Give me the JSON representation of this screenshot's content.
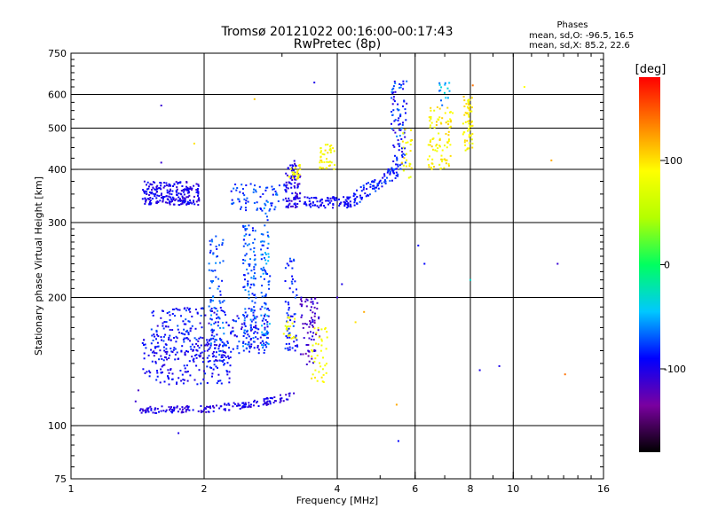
{
  "chart_data": {
    "type": "scatter",
    "title": "Tromsø 20121022 00:16:00-00:17:43",
    "subtitle": "RwPretec (8p)",
    "xlabel": "Frequency [MHz]",
    "ylabel": "Stationary phase Virtual Height [km]",
    "x_scale": "log",
    "y_scale": "log",
    "xlim": [
      1,
      16
    ],
    "ylim": [
      75,
      750
    ],
    "x_ticks": [
      {
        "value": 1,
        "label": "1"
      },
      {
        "value": 2,
        "label": "2"
      },
      {
        "value": 4,
        "label": "4"
      },
      {
        "value": 6,
        "label": "6"
      },
      {
        "value": 8,
        "label": "8"
      },
      {
        "value": 10,
        "label": "10"
      },
      {
        "value": 16,
        "label": "16"
      }
    ],
    "x_gridlines": [
      2,
      4,
      6,
      8,
      10
    ],
    "y_ticks": [
      {
        "value": 75,
        "label": "75"
      },
      {
        "value": 100,
        "label": "100"
      },
      {
        "value": 200,
        "label": "200"
      },
      {
        "value": 300,
        "label": "300"
      },
      {
        "value": 400,
        "label": "400"
      },
      {
        "value": 500,
        "label": "500"
      },
      {
        "value": 600,
        "label": "600"
      },
      {
        "value": 750,
        "label": "750"
      }
    ],
    "y_gridlines": [
      100,
      200,
      300,
      400,
      500,
      600
    ],
    "grid": true,
    "colorbar": {
      "label": "[deg]",
      "range": [
        -180,
        180
      ],
      "ticks": [
        {
          "value": 100,
          "label": "100"
        },
        {
          "value": 0,
          "label": "0"
        },
        {
          "value": -100,
          "label": "-100"
        }
      ],
      "colormap": [
        "#000000",
        "#7a00a0",
        "#0000ff",
        "#00c8ff",
        "#00ff60",
        "#b4ff00",
        "#ffff00",
        "#ff8000",
        "#ff0000"
      ]
    },
    "stats": {
      "title": "Phases",
      "line1": "mean, sd,O: -96.5, 16.5",
      "line2": "mean, sd,X:  85.2, 22.6"
    },
    "clusters": [
      {
        "f": [
          1.45,
          1.95
        ],
        "h": [
          330,
          375
        ],
        "phase": [
          -115,
          -85
        ],
        "n": 230,
        "shape": "box"
      },
      {
        "f": [
          1.52,
          2.8
        ],
        "h": [
          148,
          190
        ],
        "phase": [
          -110,
          -70
        ],
        "n": 260,
        "shape": "box"
      },
      {
        "f": [
          1.45,
          2.3
        ],
        "h": [
          125,
          160
        ],
        "phase": [
          -110,
          -80
        ],
        "n": 200,
        "shape": "box"
      },
      {
        "f": [
          1.42,
          3.2
        ],
        "h": [
          109,
          118
        ],
        "phase": [
          -115,
          -90
        ],
        "n": 170,
        "shape": "ramp"
      },
      {
        "f": [
          2.05,
          2.22
        ],
        "h": [
          140,
          280
        ],
        "phase": [
          -90,
          -55
        ],
        "n": 80,
        "shape": "box"
      },
      {
        "f": [
          2.45,
          2.62
        ],
        "h": [
          150,
          300
        ],
        "phase": [
          -90,
          -55
        ],
        "n": 110,
        "shape": "box"
      },
      {
        "f": [
          2.68,
          2.82
        ],
        "h": [
          150,
          340
        ],
        "phase": [
          -85,
          -45
        ],
        "n": 90,
        "shape": "box"
      },
      {
        "f": [
          2.3,
          3.1
        ],
        "h": [
          320,
          370
        ],
        "phase": [
          -95,
          -60
        ],
        "n": 70,
        "shape": "box"
      },
      {
        "f": [
          3.05,
          3.25
        ],
        "h": [
          150,
          250
        ],
        "phase": [
          -100,
          -70
        ],
        "n": 60,
        "shape": "box"
      },
      {
        "f": [
          3.05,
          3.3
        ],
        "h": [
          325,
          420
        ],
        "phase": [
          -120,
          -85
        ],
        "n": 90,
        "shape": "box"
      },
      {
        "f": [
          3.1,
          3.3
        ],
        "h": [
          380,
          410
        ],
        "phase": [
          70,
          105
        ],
        "n": 25,
        "shape": "box"
      },
      {
        "f": [
          3.3,
          3.65
        ],
        "h": [
          135,
          200
        ],
        "phase": [
          -130,
          -100
        ],
        "n": 70,
        "shape": "box"
      },
      {
        "f": [
          3.35,
          4.3
        ],
        "h": [
          325,
          345
        ],
        "phase": [
          -105,
          -85
        ],
        "n": 90,
        "shape": "box"
      },
      {
        "f": [
          3.5,
          3.8
        ],
        "h": [
          125,
          170
        ],
        "phase": [
          75,
          100
        ],
        "n": 40,
        "shape": "box"
      },
      {
        "f": [
          3.65,
          3.95
        ],
        "h": [
          400,
          460
        ],
        "phase": [
          75,
          105
        ],
        "n": 40,
        "shape": "box"
      },
      {
        "f": [
          3.0,
          3.25
        ],
        "h": [
          160,
          180
        ],
        "phase": [
          70,
          100
        ],
        "n": 20,
        "shape": "box"
      },
      {
        "f": [
          4.35,
          5.5
        ],
        "h": [
          340,
          400
        ],
        "phase": [
          -100,
          -70
        ],
        "n": 90,
        "shape": "ramp2"
      },
      {
        "f": [
          5.3,
          5.75
        ],
        "h": [
          400,
          650
        ],
        "phase": [
          -110,
          -60
        ],
        "n": 90,
        "shape": "box"
      },
      {
        "f": [
          5.6,
          5.9
        ],
        "h": [
          380,
          500
        ],
        "phase": [
          70,
          110
        ],
        "n": 25,
        "shape": "box"
      },
      {
        "f": [
          6.4,
          7.3
        ],
        "h": [
          400,
          560
        ],
        "phase": [
          75,
          110
        ],
        "n": 90,
        "shape": "box"
      },
      {
        "f": [
          7.7,
          8.1
        ],
        "h": [
          440,
          600
        ],
        "phase": [
          75,
          110
        ],
        "n": 60,
        "shape": "box"
      },
      {
        "f": [
          6.8,
          7.2
        ],
        "h": [
          560,
          640
        ],
        "phase": [
          -70,
          -30
        ],
        "n": 15,
        "shape": "box"
      }
    ],
    "points": [
      {
        "f": 1.4,
        "h": 114,
        "phase": -110
      },
      {
        "f": 1.42,
        "h": 121,
        "phase": -115
      },
      {
        "f": 1.6,
        "h": 565,
        "phase": -110
      },
      {
        "f": 1.6,
        "h": 415,
        "phase": -110
      },
      {
        "f": 1.75,
        "h": 96,
        "phase": -100
      },
      {
        "f": 2.6,
        "h": 585,
        "phase": 110
      },
      {
        "f": 3.55,
        "h": 640,
        "phase": -100
      },
      {
        "f": 5.5,
        "h": 92,
        "phase": -90
      },
      {
        "f": 5.45,
        "h": 112,
        "phase": 120
      },
      {
        "f": 6.1,
        "h": 265,
        "phase": -90
      },
      {
        "f": 6.3,
        "h": 240,
        "phase": -90
      },
      {
        "f": 8.0,
        "h": 220,
        "phase": -30
      },
      {
        "f": 8.4,
        "h": 135,
        "phase": -100
      },
      {
        "f": 9.3,
        "h": 138,
        "phase": -100
      },
      {
        "f": 10.6,
        "h": 625,
        "phase": 90
      },
      {
        "f": 12.2,
        "h": 420,
        "phase": 120
      },
      {
        "f": 12.6,
        "h": 240,
        "phase": -110
      },
      {
        "f": 13.1,
        "h": 132,
        "phase": 140
      },
      {
        "f": 4.4,
        "h": 175,
        "phase": 100
      },
      {
        "f": 4.6,
        "h": 185,
        "phase": 120
      },
      {
        "f": 4.0,
        "h": 200,
        "phase": -110
      },
      {
        "f": 4.1,
        "h": 215,
        "phase": -100
      },
      {
        "f": 1.9,
        "h": 460,
        "phase": 100
      },
      {
        "f": 8.1,
        "h": 630,
        "phase": 140
      }
    ]
  }
}
